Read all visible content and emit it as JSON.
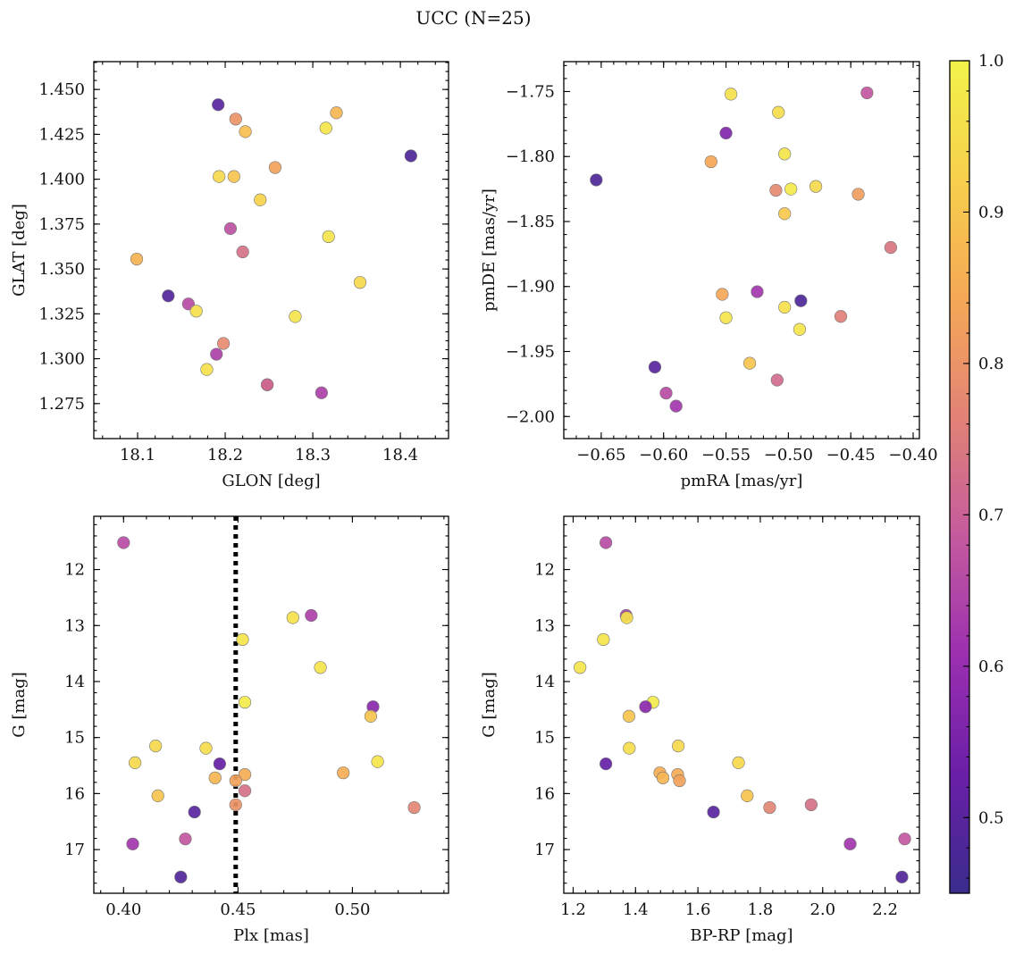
{
  "figure": {
    "title": "UCC (N=25)"
  },
  "colormap": {
    "name": "plasma",
    "stops": [
      "#3a2c8c",
      "#6a1fa8",
      "#9b2fb0",
      "#c45a9e",
      "#e28276",
      "#f5a856",
      "#f7cf4c",
      "#f2f34a"
    ],
    "range": [
      0.45,
      1.0
    ],
    "ticks": [
      0.5,
      0.6,
      0.7,
      0.8,
      0.9,
      1.0
    ],
    "tick_labels": [
      "0.5",
      "0.6",
      "0.7",
      "0.8",
      "0.9",
      "1.0"
    ]
  },
  "chart_data": [
    {
      "type": "scatter",
      "id": "glon-glat",
      "title": "",
      "xlabel": "GLON [deg]",
      "ylabel": "GLAT [deg]",
      "xlim": [
        18.05,
        18.455
      ],
      "ylim": [
        1.2555,
        1.4655
      ],
      "xticks": [
        18.1,
        18.2,
        18.3,
        18.4
      ],
      "xtick_labels": [
        "18.1",
        "18.2",
        "18.3",
        "18.4"
      ],
      "yticks": [
        1.275,
        1.3,
        1.325,
        1.35,
        1.375,
        1.4,
        1.425,
        1.45
      ],
      "ytick_labels": [
        "1.275",
        "1.300",
        "1.325",
        "1.350",
        "1.375",
        "1.400",
        "1.425",
        "1.450"
      ],
      "x": [
        18.192,
        18.212,
        18.327,
        18.223,
        18.315,
        18.412,
        18.257,
        18.193,
        18.21,
        18.24,
        18.206,
        18.318,
        18.22,
        18.099,
        18.354,
        18.135,
        18.158,
        18.167,
        18.28,
        18.198,
        18.19,
        18.179,
        18.248,
        18.31,
        18.248
      ],
      "y": [
        1.4415,
        1.4335,
        1.437,
        1.4265,
        1.4285,
        1.413,
        1.4065,
        1.4015,
        1.4015,
        1.3885,
        1.3725,
        1.368,
        1.3595,
        1.3555,
        1.3425,
        1.335,
        1.3305,
        1.3265,
        1.3235,
        1.3085,
        1.3025,
        1.294,
        1.2855,
        1.281,
        1.2855
      ],
      "c": [
        0.5,
        0.8,
        0.87,
        0.89,
        0.97,
        0.48,
        0.83,
        0.94,
        0.9,
        0.93,
        0.67,
        0.97,
        0.73,
        0.86,
        0.94,
        0.49,
        0.66,
        0.96,
        0.97,
        0.78,
        0.64,
        0.96,
        0.6,
        0.64,
        0.72
      ]
    },
    {
      "type": "scatter",
      "id": "pmra-pmde",
      "title": "",
      "xlabel": "pmRA [mas/yr]",
      "ylabel": "pmDE [mas/yr]",
      "xlim": [
        -0.68,
        -0.395
      ],
      "ylim": [
        -2.017,
        -1.727
      ],
      "xticks": [
        -0.65,
        -0.6,
        -0.55,
        -0.5,
        -0.45,
        -0.4
      ],
      "xtick_labels": [
        "−0.65",
        "−0.60",
        "−0.55",
        "−0.50",
        "−0.45",
        "−0.40"
      ],
      "yticks": [
        -2.0,
        -1.95,
        -1.9,
        -1.85,
        -1.8,
        -1.75
      ],
      "ytick_labels": [
        "−2.00",
        "−1.95",
        "−1.90",
        "−1.85",
        "−1.80",
        "−1.75"
      ],
      "x": [
        -0.546,
        -0.437,
        -0.508,
        -0.55,
        -0.503,
        -0.562,
        -0.654,
        -0.51,
        -0.498,
        -0.478,
        -0.444,
        -0.503,
        -0.418,
        -0.553,
        -0.525,
        -0.49,
        -0.55,
        -0.503,
        -0.458,
        -0.491,
        -0.531,
        -0.607,
        -0.509,
        -0.598,
        -0.59
      ],
      "y": [
        -1.752,
        -1.751,
        -1.766,
        -1.782,
        -1.798,
        -1.804,
        -1.818,
        -1.826,
        -1.825,
        -1.823,
        -1.829,
        -1.844,
        -1.87,
        -1.906,
        -1.904,
        -1.911,
        -1.924,
        -1.916,
        -1.923,
        -1.933,
        -1.959,
        -1.962,
        -1.972,
        -1.982,
        -1.992
      ],
      "c": [
        0.96,
        0.68,
        0.95,
        0.56,
        0.97,
        0.84,
        0.48,
        0.78,
        0.98,
        0.94,
        0.82,
        0.91,
        0.74,
        0.84,
        0.62,
        0.48,
        0.97,
        0.96,
        0.76,
        0.97,
        0.9,
        0.5,
        0.72,
        0.66,
        0.62
      ]
    },
    {
      "type": "scatter",
      "id": "plx-g",
      "title": "",
      "xlabel": "Plx [mas]",
      "ylabel": "G [mag]",
      "xlim": [
        0.387,
        0.542
      ],
      "ylim": [
        17.78,
        11.05
      ],
      "y_inverted": true,
      "xticks": [
        0.4,
        0.45,
        0.5
      ],
      "xtick_labels": [
        "0.40",
        "0.45",
        "0.50"
      ],
      "yticks": [
        12,
        13,
        14,
        15,
        16,
        17
      ],
      "ytick_labels": [
        "12",
        "13",
        "14",
        "15",
        "16",
        "17"
      ],
      "vline": 0.449,
      "x": [
        0.4,
        0.482,
        0.474,
        0.452,
        0.486,
        0.453,
        0.509,
        0.508,
        0.414,
        0.436,
        0.405,
        0.511,
        0.442,
        0.496,
        0.453,
        0.44,
        0.449,
        0.453,
        0.415,
        0.449,
        0.527,
        0.431,
        0.404,
        0.427,
        0.425
      ],
      "y": [
        11.52,
        12.82,
        12.86,
        13.25,
        13.75,
        14.37,
        14.45,
        14.62,
        15.15,
        15.19,
        15.45,
        15.43,
        15.47,
        15.63,
        15.66,
        15.72,
        15.77,
        15.95,
        16.04,
        16.2,
        16.25,
        16.33,
        16.9,
        16.81,
        17.49
      ],
      "c": [
        0.66,
        0.64,
        0.96,
        0.97,
        0.97,
        0.98,
        0.58,
        0.9,
        0.94,
        0.95,
        0.94,
        0.97,
        0.52,
        0.85,
        0.85,
        0.87,
        0.83,
        0.73,
        0.9,
        0.8,
        0.77,
        0.5,
        0.62,
        0.68,
        0.49
      ]
    },
    {
      "type": "scatter",
      "id": "bprp-g",
      "title": "",
      "xlabel": "BP-RP [mag]",
      "ylabel": "G [mag]",
      "xlim": [
        1.17,
        2.31
      ],
      "ylim": [
        17.78,
        11.05
      ],
      "y_inverted": true,
      "xticks": [
        1.2,
        1.4,
        1.6,
        1.8,
        2.0,
        2.2
      ],
      "xtick_labels": [
        "1.2",
        "1.4",
        "1.6",
        "1.8",
        "2.0",
        "2.2"
      ],
      "yticks": [
        12,
        13,
        14,
        15,
        16,
        17
      ],
      "ytick_labels": [
        "12",
        "13",
        "14",
        "15",
        "16",
        "17"
      ],
      "x": [
        1.305,
        1.37,
        1.372,
        1.297,
        1.222,
        1.456,
        1.432,
        1.379,
        1.537,
        1.38,
        1.73,
        1.305,
        1.478,
        1.488,
        1.535,
        1.541,
        1.758,
        1.65,
        1.83,
        1.963,
        2.088,
        2.263,
        2.254
      ],
      "y": [
        11.52,
        12.82,
        12.86,
        13.25,
        13.75,
        14.37,
        14.45,
        14.62,
        15.15,
        15.19,
        15.45,
        15.47,
        15.63,
        15.72,
        15.66,
        15.77,
        16.04,
        16.33,
        16.25,
        16.2,
        16.9,
        16.81,
        17.49
      ],
      "c": [
        0.66,
        0.64,
        0.96,
        0.97,
        0.97,
        0.98,
        0.58,
        0.9,
        0.94,
        0.95,
        0.94,
        0.52,
        0.85,
        0.87,
        0.85,
        0.83,
        0.9,
        0.5,
        0.77,
        0.73,
        0.62,
        0.68,
        0.49
      ]
    }
  ]
}
